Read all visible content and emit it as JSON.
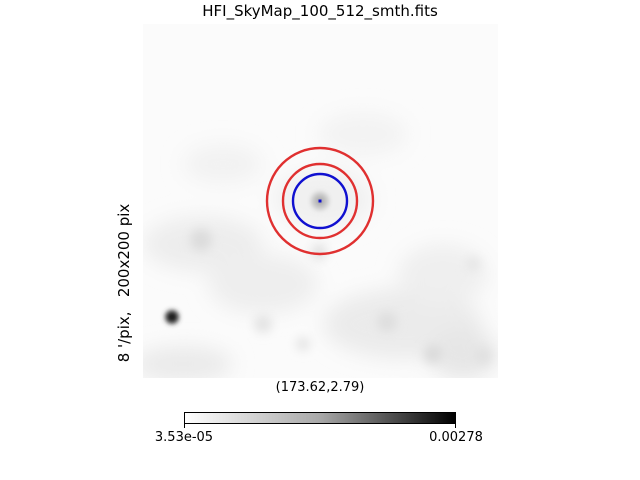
{
  "figure": {
    "title": "HFI_SkyMap_100_512_smth.fits",
    "side_label": "8 '/pix,   200x200 pix",
    "center_coords": "(173.62,2.79)"
  },
  "colorbar": {
    "min_label": "3.53e-05",
    "max_label": "0.00278",
    "colormap": "grayscale, white to black"
  },
  "overlays": {
    "inner_circle_color": "#1010d0",
    "annulus_color": "#e03030"
  }
}
